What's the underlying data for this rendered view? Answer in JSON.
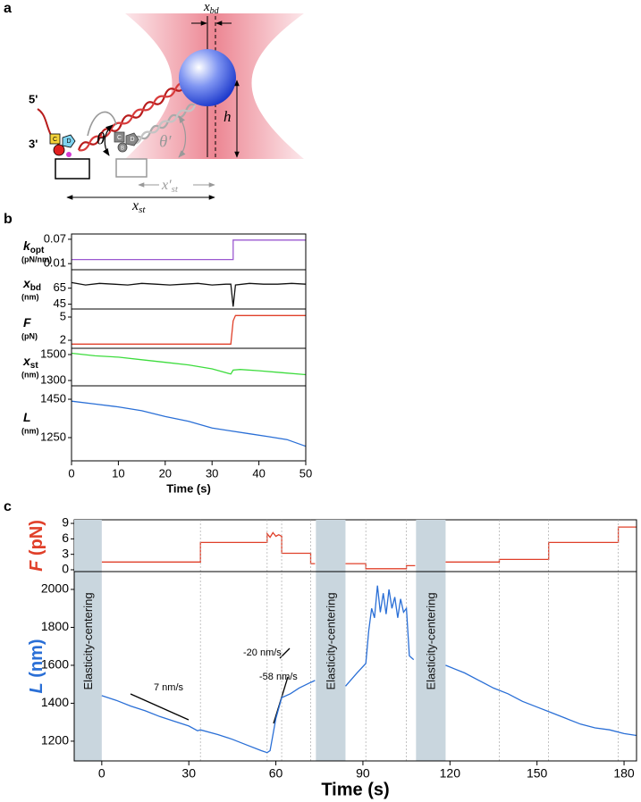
{
  "panel_labels": [
    "a",
    "b",
    "c"
  ],
  "diagram": {
    "x_bd": {
      "main": "x",
      "sub": "bd"
    },
    "h": "h",
    "five_prime": "5'",
    "three_prime": "3'",
    "theta": "θ",
    "theta_prime": "θ′",
    "x_st_prime": {
      "main": "x′",
      "sub": "st"
    },
    "x_st": {
      "main": "x",
      "sub": "st"
    },
    "protein_letters": [
      "C",
      "D",
      "C",
      "D",
      "B"
    ]
  },
  "chart_data": [
    {
      "type": "line",
      "ylabel": {
        "symbol": "k",
        "sub": "opt",
        "unit": "(pN/nm)"
      },
      "color": "#9b59d0",
      "xlim": [
        0,
        50
      ],
      "ylim": [
        -0.005,
        0.083
      ],
      "yticks": [
        0.01,
        0.07
      ],
      "x": [
        0,
        34.5,
        34.5,
        50
      ],
      "values": [
        0.02,
        0.02,
        0.068,
        0.068
      ]
    },
    {
      "type": "line",
      "ylabel": {
        "symbol": "x",
        "sub": "bd",
        "unit": "(nm)"
      },
      "color": "#111111",
      "xlim": [
        0,
        50
      ],
      "ylim": [
        39,
        88
      ],
      "yticks": [
        45,
        65
      ],
      "x": [
        0,
        3,
        6,
        9,
        12,
        15,
        18,
        21,
        24,
        27,
        30,
        33,
        34,
        34.5,
        35,
        38,
        41,
        44,
        47,
        50
      ],
      "values": [
        72,
        69,
        71,
        70,
        69,
        71,
        70,
        69,
        70,
        71,
        69,
        70,
        70,
        42,
        69,
        71,
        70,
        70,
        71,
        70
      ]
    },
    {
      "type": "line",
      "ylabel": {
        "symbol": "F",
        "unit": "(pN)"
      },
      "color": "#e0402a",
      "xlim": [
        0,
        50
      ],
      "ylim": [
        0.96,
        6.04
      ],
      "yticks": [
        2,
        5
      ],
      "x": [
        0,
        34,
        34.5,
        35,
        50
      ],
      "values": [
        1.5,
        1.5,
        4.5,
        5.2,
        5.2
      ]
    },
    {
      "type": "line",
      "ylabel": {
        "symbol": "x",
        "sub": "st",
        "unit": "(nm)"
      },
      "color": "#3ddc3d",
      "xlim": [
        0,
        50
      ],
      "ylim": [
        1259,
        1548
      ],
      "yticks": [
        1300,
        1500
      ],
      "x": [
        0,
        5,
        10,
        15,
        20,
        25,
        30,
        34,
        34.5,
        36,
        40,
        45,
        50
      ],
      "values": [
        1510,
        1490,
        1480,
        1460,
        1440,
        1420,
        1390,
        1350,
        1380,
        1385,
        1375,
        1360,
        1345
      ]
    },
    {
      "type": "line",
      "ylabel": {
        "symbol": "L",
        "unit": "(nm)"
      },
      "color": "#2a6fd6",
      "xlim": [
        0,
        50
      ],
      "ylim": [
        1129,
        1520
      ],
      "yticks": [
        1250,
        1450
      ],
      "xticks": [
        0,
        10,
        20,
        30,
        40,
        50
      ],
      "xlabel": "Time (s)",
      "x": [
        0,
        5,
        10,
        15,
        20,
        25,
        30,
        34,
        38,
        42,
        46,
        50
      ],
      "values": [
        1440,
        1425,
        1410,
        1390,
        1360,
        1335,
        1300,
        1285,
        1270,
        1255,
        1240,
        1205
      ]
    },
    {
      "type": "line",
      "ylabel": {
        "symbol": "F",
        "unit": "(pN)"
      },
      "color": "#e0402a",
      "xlim": [
        -9.5,
        184.3
      ],
      "ylim": [
        -0.35,
        9.7
      ],
      "yticks": [
        0,
        3,
        6,
        9
      ],
      "x": [
        0,
        34,
        34,
        57,
        57,
        58,
        59,
        60,
        61,
        62,
        62,
        72,
        72,
        73.5,
        null,
        84,
        91,
        91,
        105,
        105,
        108,
        null,
        118.5,
        137,
        137,
        154,
        154,
        178,
        178,
        184.3
      ],
      "values": [
        1.5,
        1.5,
        5.3,
        5.3,
        7,
        6.3,
        7.2,
        6.5,
        6.8,
        6.5,
        3.2,
        3.2,
        1.2,
        1.2,
        null,
        1.2,
        1.2,
        0.2,
        0.2,
        0.8,
        0.8,
        null,
        1.5,
        1.5,
        2,
        2,
        5.3,
        5.3,
        8.3,
        8.3
      ]
    },
    {
      "type": "line",
      "ylabel": {
        "symbol": "L",
        "unit": "(nm)"
      },
      "color": "#2a6fd6",
      "xlim": [
        -9.5,
        184.3
      ],
      "ylim": [
        1096,
        2094
      ],
      "yticks": [
        1200,
        1400,
        1600,
        1800,
        2000
      ],
      "xticks": [
        0,
        30,
        60,
        90,
        120,
        150,
        180
      ],
      "xlabel": "Time (s)",
      "bands": [
        {
          "start": -9.5,
          "end": 0,
          "label": "Elasticity-centering"
        },
        {
          "start": 73.8,
          "end": 84,
          "label": "Elasticity-centering"
        },
        {
          "start": 108.3,
          "end": 118.5,
          "label": "Elasticity-centering"
        }
      ],
      "event_lines": [
        34,
        57,
        62,
        72,
        91,
        105,
        137,
        154,
        178
      ],
      "annotations": [
        "7 nm/s",
        "-20 nm/s",
        "-58 nm/s"
      ],
      "x": [
        0,
        5,
        10,
        15,
        20,
        25,
        30,
        33,
        34,
        40,
        45,
        50,
        55,
        57,
        58,
        60,
        62,
        65,
        68,
        72,
        73.5,
        null,
        84,
        88,
        91,
        92,
        93,
        94,
        95,
        96,
        97,
        98,
        99,
        100,
        101,
        102,
        103,
        104,
        105,
        106,
        107.5,
        null,
        118.5,
        125,
        130,
        135,
        140,
        145,
        150,
        155,
        160,
        165,
        170,
        175,
        180,
        184.3
      ],
      "values": [
        1440,
        1415,
        1385,
        1360,
        1330,
        1305,
        1280,
        1255,
        1260,
        1235,
        1210,
        1180,
        1150,
        1140,
        1150,
        1320,
        1430,
        1450,
        1480,
        1510,
        1520,
        null,
        1490,
        1560,
        1610,
        1780,
        1900,
        1850,
        2020,
        1880,
        1980,
        1870,
        2000,
        1900,
        1960,
        1850,
        1950,
        1880,
        1900,
        1650,
        1630,
        null,
        1600,
        1560,
        1520,
        1480,
        1450,
        1410,
        1380,
        1350,
        1320,
        1290,
        1270,
        1260,
        1240,
        1230
      ]
    }
  ]
}
